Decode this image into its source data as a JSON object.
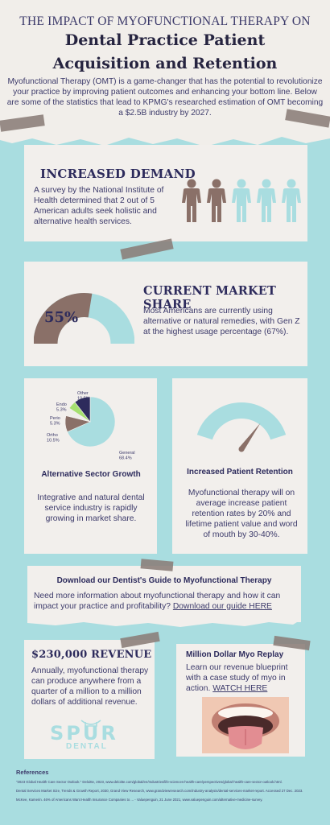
{
  "header": {
    "top_line": "THE IMPACT OF MYOFUNCTIONAL THERAPY ON",
    "title_line1": "Dental Practice Patient",
    "title_line2": "Acquisition and Retention",
    "intro": "Myofunctional Therapy (OMT) is a game-changer that has the potential to revolutionize your practice by improving patient outcomes and enhancing your bottom line. Below are some of the statistics that lead to KPMG's researched estimation of OMT becoming a $2.5B industry by 2027."
  },
  "demand": {
    "title": "INCREASED DEMAND",
    "text": "A survey by the National Institute of Health determined that 2 out of 5 American adults seek holistic and alternative health services.",
    "people_total": 5,
    "people_highlighted": 2,
    "highlight_color": "#8a7068",
    "base_color": "#a9dde0"
  },
  "market_share": {
    "title": "CURRENT MARKET SHARE",
    "value_label": "55%",
    "value": 55,
    "text": "Most Americans are currently using alternative or natural remedies, with Gen Z at the highest usage percentage (67%).",
    "fill_color": "#8a7068",
    "track_color": "#a9dde0"
  },
  "sector": {
    "title": "Alternative Sector Growth",
    "text": "Integrative and natural dental service industry is rapidly growing in market share."
  },
  "chart_data": {
    "type": "pie",
    "categories": [
      "General",
      "Ortho",
      "Perio",
      "Endo",
      "Other"
    ],
    "values": [
      68.4,
      10.5,
      5.3,
      5.3,
      10.5
    ],
    "labels": [
      "General 68.4%",
      "Ortho 10.5%",
      "Perio 5.3%",
      "Endo 5.3%",
      "Other 10.5%"
    ],
    "colors": [
      "#a9dde0",
      "#8a7068",
      "#f0eeea",
      "#a6e070",
      "#2d2b5c"
    ]
  },
  "retention": {
    "title": "Increased Patient Retention",
    "text": "Myofunctional therapy will on average increase patient retention rates by 20% and lifetime patient value and word of mouth by 30-40%.",
    "gauge_level": 0.7,
    "gauge_color": "#a9dde0",
    "needle_color": "#8a7068"
  },
  "download": {
    "title": "Download our Dentist's Guide  to Myofunctional Therapy",
    "text": "Need more information about myofunctional therapy and how it can impact your practice and profitability?",
    "link": "Download our guide HERE"
  },
  "revenue": {
    "title": "$230,000 REVENUE",
    "text": "Annually, myofunctional therapy can produce anywhere from a quarter of a million to a million dollars of additional revenue.",
    "logo_top": "SPUR",
    "logo_bottom": "DENTAL"
  },
  "replay": {
    "title": "Million Dollar Myo Replay",
    "text": "Learn our revenue blueprint with a case study of myo in action.",
    "link": "WATCH HERE"
  },
  "references": {
    "title": "References",
    "items": [
      "\"2023 Global Health Care Sector Outlook.\" Deloitte, 2023, www.deloitte.com/global/en/Industries/life-sciences-health-care/perspectives/global-health-care-sector-outlook.html.",
      "Dental Services Market Size, Trends & Growth Report, 2030, Grand View Research, www.grandviewresearch.com/industry-analysis/dental-services-market-report. Accessed 27 Dec. 2023.",
      "McKee, Kamerin. 46% of Americans Want Health Insurance Companies to ... - Valuepenguin, 21 June 2021, www.valuepenguin.com/alternative-medicine-survey."
    ]
  }
}
